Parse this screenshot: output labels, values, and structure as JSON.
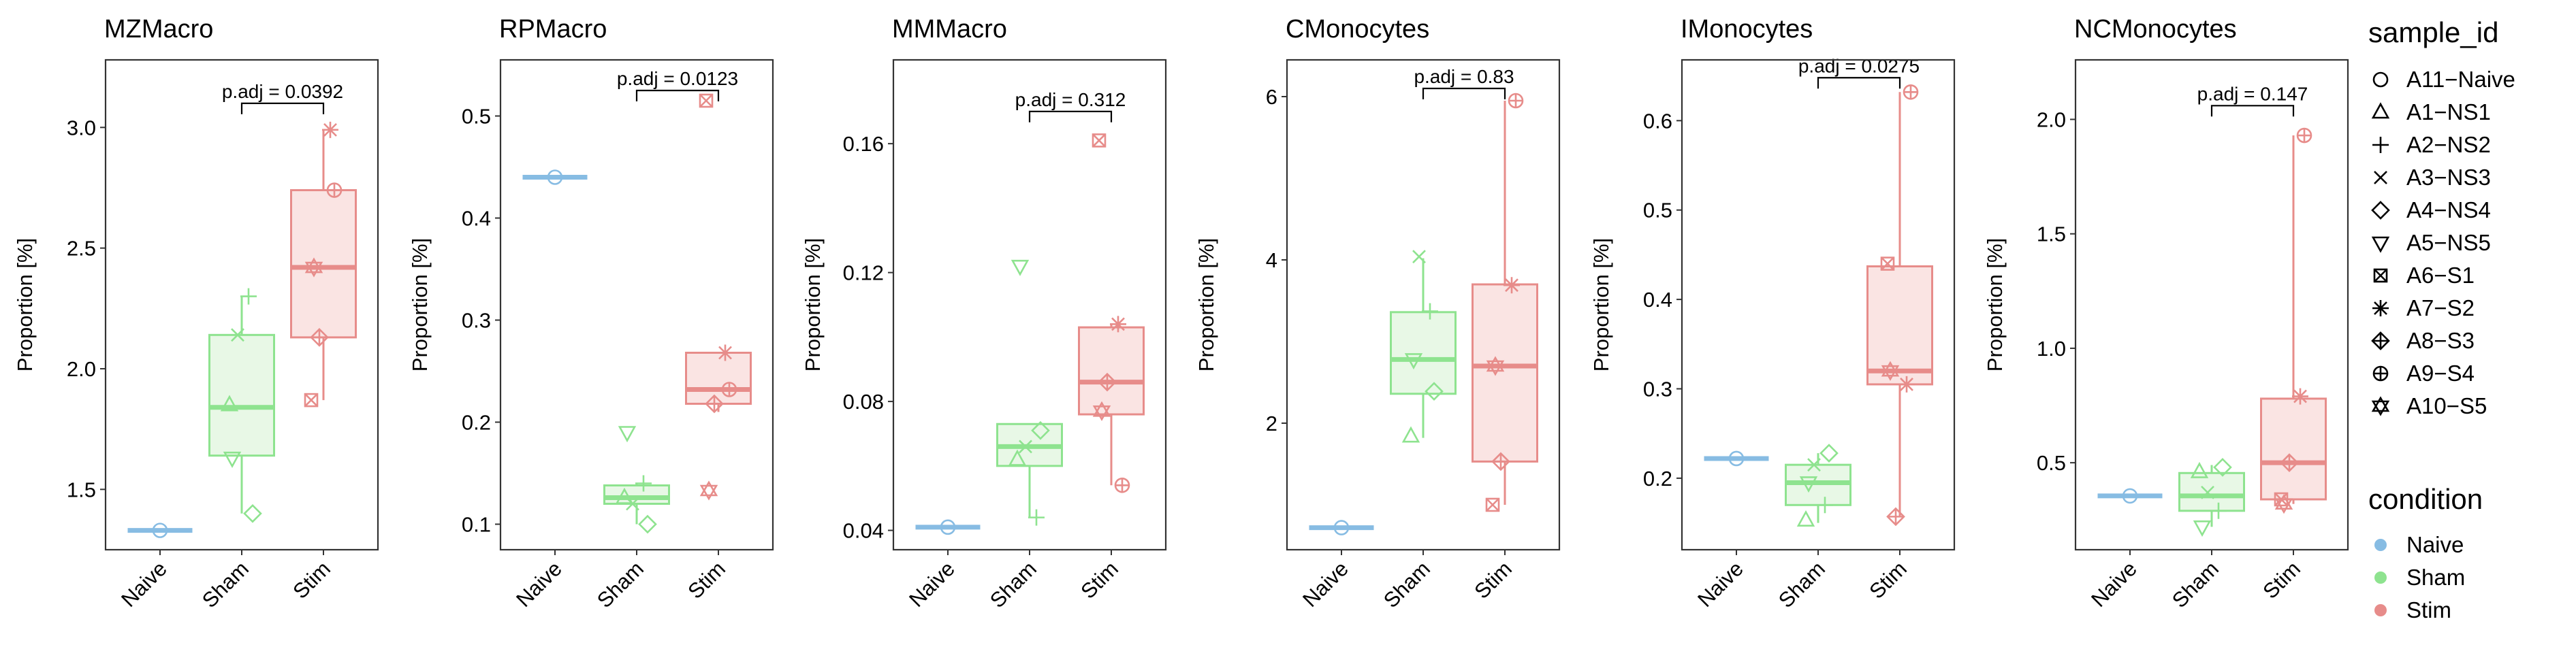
{
  "chart_data": {
    "type": "box",
    "ylabel": "Proportion [%]",
    "categories": [
      "Naive",
      "Sham",
      "Stim"
    ],
    "colors": {
      "Naive": "#87bce3",
      "Sham": "#8ee38f",
      "Stim": "#e78c8a"
    },
    "fills": {
      "Naive": "#e8f2fa",
      "Sham": "#e8f8e6",
      "Stim": "#fae4e3"
    },
    "panels": [
      {
        "title": "MZMacro",
        "ylim": [
          1.25,
          3.28
        ],
        "yticks": [
          1.5,
          2.0,
          2.5,
          3.0
        ],
        "ytick_labels": [
          "1.5",
          "2.0",
          "2.5",
          "3.0"
        ],
        "significance": {
          "label": "p.adj = 0.0392",
          "from": "Sham",
          "to": "Stim",
          "y": 3.1
        },
        "boxes": [
          {
            "group": "Naive",
            "q1": 1.33,
            "median": 1.33,
            "q3": 1.33,
            "whisker_low": 1.33,
            "whisker_high": 1.33
          },
          {
            "group": "Sham",
            "q1": 1.64,
            "median": 1.84,
            "q3": 2.14,
            "whisker_low": 1.4,
            "whisker_high": 2.3
          },
          {
            "group": "Stim",
            "q1": 2.13,
            "median": 2.42,
            "q3": 2.74,
            "whisker_low": 1.87,
            "whisker_high": 2.99
          }
        ],
        "points": [
          {
            "group": "Naive",
            "sample": "A11-Naive",
            "y": 1.33
          },
          {
            "group": "Sham",
            "sample": "A1-NS1",
            "y": 1.85
          },
          {
            "group": "Sham",
            "sample": "A2-NS2",
            "y": 2.3
          },
          {
            "group": "Sham",
            "sample": "A3-NS3",
            "y": 2.14
          },
          {
            "group": "Sham",
            "sample": "A4-NS4",
            "y": 1.4
          },
          {
            "group": "Sham",
            "sample": "A5-NS5",
            "y": 1.63
          },
          {
            "group": "Stim",
            "sample": "A6-S1",
            "y": 1.87
          },
          {
            "group": "Stim",
            "sample": "A7-S2",
            "y": 2.99
          },
          {
            "group": "Stim",
            "sample": "A8-S3",
            "y": 2.13
          },
          {
            "group": "Stim",
            "sample": "A9-S4",
            "y": 2.74
          },
          {
            "group": "Stim",
            "sample": "A10-S5",
            "y": 2.42
          }
        ]
      },
      {
        "title": "RPMacro",
        "ylim": [
          0.075,
          0.555
        ],
        "yticks": [
          0.1,
          0.2,
          0.3,
          0.4,
          0.5
        ],
        "ytick_labels": [
          "0.1",
          "0.2",
          "0.3",
          "0.4",
          "0.5"
        ],
        "significance": {
          "label": "p.adj = 0.0123",
          "from": "Sham",
          "to": "Stim",
          "y": 0.525
        },
        "boxes": [
          {
            "group": "Naive",
            "q1": 0.44,
            "median": 0.44,
            "q3": 0.44,
            "whisker_low": 0.44,
            "whisker_high": 0.44
          },
          {
            "group": "Sham",
            "q1": 0.12,
            "median": 0.126,
            "q3": 0.138,
            "whisker_low": 0.1,
            "whisker_high": 0.14
          },
          {
            "group": "Stim",
            "q1": 0.218,
            "median": 0.232,
            "q3": 0.268,
            "whisker_low": 0.21,
            "whisker_high": 0.268
          }
        ],
        "points": [
          {
            "group": "Naive",
            "sample": "A11-Naive",
            "y": 0.44
          },
          {
            "group": "Sham",
            "sample": "A1-NS1",
            "y": 0.126
          },
          {
            "group": "Sham",
            "sample": "A2-NS2",
            "y": 0.14
          },
          {
            "group": "Sham",
            "sample": "A3-NS3",
            "y": 0.12
          },
          {
            "group": "Sham",
            "sample": "A4-NS4",
            "y": 0.1
          },
          {
            "group": "Sham",
            "sample": "A5-NS5",
            "y": 0.19
          },
          {
            "group": "Stim",
            "sample": "A6-S1",
            "y": 0.515
          },
          {
            "group": "Stim",
            "sample": "A7-S2",
            "y": 0.268
          },
          {
            "group": "Stim",
            "sample": "A8-S3",
            "y": 0.218
          },
          {
            "group": "Stim",
            "sample": "A9-S4",
            "y": 0.232
          },
          {
            "group": "Stim",
            "sample": "A10-S5",
            "y": 0.133
          }
        ]
      },
      {
        "title": "MMMacro",
        "ylim": [
          0.034,
          0.186
        ],
        "yticks": [
          0.04,
          0.08,
          0.12,
          0.16
        ],
        "ytick_labels": [
          "0.04",
          "0.08",
          "0.12",
          "0.16"
        ],
        "significance": {
          "label": "p.adj = 0.312",
          "from": "Sham",
          "to": "Stim",
          "y": 0.17
        },
        "boxes": [
          {
            "group": "Naive",
            "q1": 0.041,
            "median": 0.041,
            "q3": 0.041,
            "whisker_low": 0.041,
            "whisker_high": 0.041
          },
          {
            "group": "Sham",
            "q1": 0.06,
            "median": 0.066,
            "q3": 0.073,
            "whisker_low": 0.044,
            "whisker_high": 0.073
          },
          {
            "group": "Stim",
            "q1": 0.076,
            "median": 0.086,
            "q3": 0.103,
            "whisker_low": 0.054,
            "whisker_high": 0.104
          }
        ],
        "points": [
          {
            "group": "Naive",
            "sample": "A11-Naive",
            "y": 0.041
          },
          {
            "group": "Sham",
            "sample": "A1-NS1",
            "y": 0.062
          },
          {
            "group": "Sham",
            "sample": "A2-NS2",
            "y": 0.044
          },
          {
            "group": "Sham",
            "sample": "A3-NS3",
            "y": 0.066
          },
          {
            "group": "Sham",
            "sample": "A4-NS4",
            "y": 0.071
          },
          {
            "group": "Sham",
            "sample": "A5-NS5",
            "y": 0.122
          },
          {
            "group": "Stim",
            "sample": "A6-S1",
            "y": 0.161
          },
          {
            "group": "Stim",
            "sample": "A7-S2",
            "y": 0.104
          },
          {
            "group": "Stim",
            "sample": "A8-S3",
            "y": 0.086
          },
          {
            "group": "Stim",
            "sample": "A9-S4",
            "y": 0.054
          },
          {
            "group": "Stim",
            "sample": "A10-S5",
            "y": 0.077
          }
        ]
      },
      {
        "title": "CMonocytes",
        "ylim": [
          0.45,
          6.45
        ],
        "yticks": [
          2,
          4,
          6
        ],
        "ytick_labels": [
          "2",
          "4",
          "6"
        ],
        "significance": {
          "label": "p.adj = 0.83",
          "from": "Sham",
          "to": "Stim",
          "y": 6.1
        },
        "boxes": [
          {
            "group": "Naive",
            "q1": 0.72,
            "median": 0.72,
            "q3": 0.72,
            "whisker_low": 0.72,
            "whisker_high": 0.72
          },
          {
            "group": "Sham",
            "q1": 2.36,
            "median": 2.78,
            "q3": 3.36,
            "whisker_low": 1.82,
            "whisker_high": 4.02
          },
          {
            "group": "Stim",
            "q1": 1.53,
            "median": 2.7,
            "q3": 3.7,
            "whisker_low": 1.0,
            "whisker_high": 5.95
          }
        ],
        "points": [
          {
            "group": "Naive",
            "sample": "A11-Naive",
            "y": 0.72
          },
          {
            "group": "Sham",
            "sample": "A1-NS1",
            "y": 1.84
          },
          {
            "group": "Sham",
            "sample": "A2-NS2",
            "y": 3.37
          },
          {
            "group": "Sham",
            "sample": "A3-NS3",
            "y": 4.04
          },
          {
            "group": "Sham",
            "sample": "A4-NS4",
            "y": 2.39
          },
          {
            "group": "Sham",
            "sample": "A5-NS5",
            "y": 2.78
          },
          {
            "group": "Stim",
            "sample": "A6-S1",
            "y": 1.0
          },
          {
            "group": "Stim",
            "sample": "A7-S2",
            "y": 3.69
          },
          {
            "group": "Stim",
            "sample": "A8-S3",
            "y": 1.53
          },
          {
            "group": "Stim",
            "sample": "A9-S4",
            "y": 5.95
          },
          {
            "group": "Stim",
            "sample": "A10-S5",
            "y": 2.7
          }
        ]
      },
      {
        "title": "IMonocytes",
        "ylim": [
          0.12,
          0.668
        ],
        "yticks": [
          0.2,
          0.3,
          0.4,
          0.5,
          0.6
        ],
        "ytick_labels": [
          "0.2",
          "0.3",
          "0.4",
          "0.5",
          "0.6"
        ],
        "significance": {
          "label": "p.adj = 0.0275",
          "from": "Sham",
          "to": "Stim",
          "y": 0.648
        },
        "boxes": [
          {
            "group": "Naive",
            "q1": 0.222,
            "median": 0.222,
            "q3": 0.222,
            "whisker_low": 0.222,
            "whisker_high": 0.222
          },
          {
            "group": "Sham",
            "q1": 0.17,
            "median": 0.195,
            "q3": 0.215,
            "whisker_low": 0.15,
            "whisker_high": 0.228
          },
          {
            "group": "Stim",
            "q1": 0.305,
            "median": 0.32,
            "q3": 0.437,
            "whisker_low": 0.157,
            "whisker_high": 0.632
          }
        ],
        "points": [
          {
            "group": "Naive",
            "sample": "A11-Naive",
            "y": 0.222
          },
          {
            "group": "Sham",
            "sample": "A1-NS1",
            "y": 0.153
          },
          {
            "group": "Sham",
            "sample": "A2-NS2",
            "y": 0.17
          },
          {
            "group": "Sham",
            "sample": "A3-NS3",
            "y": 0.215
          },
          {
            "group": "Sham",
            "sample": "A4-NS4",
            "y": 0.228
          },
          {
            "group": "Sham",
            "sample": "A5-NS5",
            "y": 0.195
          },
          {
            "group": "Stim",
            "sample": "A6-S1",
            "y": 0.44
          },
          {
            "group": "Stim",
            "sample": "A7-S2",
            "y": 0.305
          },
          {
            "group": "Stim",
            "sample": "A8-S3",
            "y": 0.157
          },
          {
            "group": "Stim",
            "sample": "A9-S4",
            "y": 0.632
          },
          {
            "group": "Stim",
            "sample": "A10-S5",
            "y": 0.32
          }
        ]
      },
      {
        "title": "NCMonocytes",
        "ylim": [
          0.12,
          2.26
        ],
        "yticks": [
          0.5,
          1.0,
          1.5,
          2.0
        ],
        "ytick_labels": [
          "0.5",
          "1.0",
          "1.5",
          "2.0"
        ],
        "significance": {
          "label": "p.adj = 0.147",
          "from": "Sham",
          "to": "Stim",
          "y": 2.06
        },
        "boxes": [
          {
            "group": "Naive",
            "q1": 0.355,
            "median": 0.355,
            "q3": 0.355,
            "whisker_low": 0.355,
            "whisker_high": 0.355
          },
          {
            "group": "Sham",
            "q1": 0.29,
            "median": 0.355,
            "q3": 0.455,
            "whisker_low": 0.22,
            "whisker_high": 0.49
          },
          {
            "group": "Stim",
            "q1": 0.34,
            "median": 0.5,
            "q3": 0.78,
            "whisker_low": 0.32,
            "whisker_high": 1.93
          }
        ],
        "points": [
          {
            "group": "Naive",
            "sample": "A11-Naive",
            "y": 0.355
          },
          {
            "group": "Sham",
            "sample": "A1-NS1",
            "y": 0.46
          },
          {
            "group": "Sham",
            "sample": "A2-NS2",
            "y": 0.29
          },
          {
            "group": "Sham",
            "sample": "A3-NS3",
            "y": 0.37
          },
          {
            "group": "Sham",
            "sample": "A4-NS4",
            "y": 0.48
          },
          {
            "group": "Sham",
            "sample": "A5-NS5",
            "y": 0.22
          },
          {
            "group": "Stim",
            "sample": "A6-S1",
            "y": 0.34
          },
          {
            "group": "Stim",
            "sample": "A7-S2",
            "y": 0.79
          },
          {
            "group": "Stim",
            "sample": "A8-S3",
            "y": 0.5
          },
          {
            "group": "Stim",
            "sample": "A9-S4",
            "y": 1.93
          },
          {
            "group": "Stim",
            "sample": "A10-S5",
            "y": 0.32
          }
        ]
      }
    ],
    "legend": {
      "placement": "right",
      "sample_title": "sample_id",
      "samples": [
        {
          "label": "A11−Naive",
          "shape": "circle"
        },
        {
          "label": "A1−NS1",
          "shape": "triangle-up"
        },
        {
          "label": "A2−NS2",
          "shape": "plus"
        },
        {
          "label": "A3−NS3",
          "shape": "cross"
        },
        {
          "label": "A4−NS4",
          "shape": "diamond"
        },
        {
          "label": "A5−NS5",
          "shape": "triangle-down"
        },
        {
          "label": "A6−S1",
          "shape": "square-cross"
        },
        {
          "label": "A7−S2",
          "shape": "asterisk"
        },
        {
          "label": "A8−S3",
          "shape": "diamond-plus"
        },
        {
          "label": "A9−S4",
          "shape": "circle-plus"
        },
        {
          "label": "A10−S5",
          "shape": "star-of-david"
        }
      ],
      "condition_title": "condition",
      "conditions": [
        {
          "label": "Naive",
          "color": "#87bce3"
        },
        {
          "label": "Sham",
          "color": "#8ee38f"
        },
        {
          "label": "Stim",
          "color": "#e78c8a"
        }
      ]
    }
  }
}
